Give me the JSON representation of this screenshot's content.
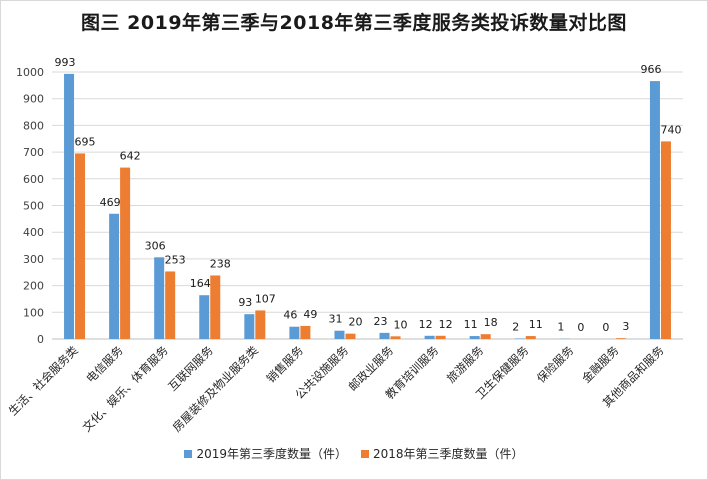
{
  "chart_data": {
    "type": "bar",
    "title": "图三 2019年第三季与2018年第三季度服务类投诉数量对比图",
    "xlabel": "",
    "ylabel": "",
    "ylim": [
      0,
      1000
    ],
    "yticks": [
      0,
      100,
      200,
      300,
      400,
      500,
      600,
      700,
      800,
      900,
      1000
    ],
    "grid": true,
    "legend_position": "bottom",
    "categories": [
      "生活、社会服务类",
      "电信服务",
      "文化、娱乐、体育服务",
      "互联网服务",
      "房屋装修及物业服务类",
      "销售服务",
      "公共设施服务",
      "邮政业服务",
      "教育培训服务",
      "旅游服务",
      "卫生保健服务",
      "保险服务",
      "金融服务",
      "其他商品和服务"
    ],
    "series": [
      {
        "name": "2019年第三季度数量（件）",
        "color": "#5b9bd5",
        "values": [
          993,
          469,
          306,
          164,
          93,
          46,
          31,
          23,
          12,
          11,
          2,
          1,
          0,
          966
        ]
      },
      {
        "name": "2018年第三季度数量（件）",
        "color": "#ed7d31",
        "values": [
          695,
          642,
          253,
          238,
          107,
          49,
          20,
          10,
          12,
          18,
          11,
          0,
          3,
          740
        ]
      }
    ]
  }
}
